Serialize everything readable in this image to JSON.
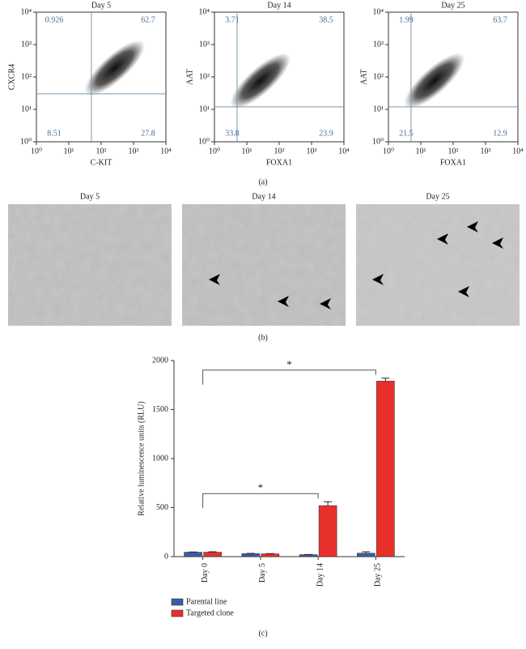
{
  "chart_data": [
    {
      "type": "flow",
      "title": "Day 5",
      "xlabel": "C-KIT",
      "ylabel": "CXCR4",
      "log_scale": true,
      "xlim": [
        1,
        10000
      ],
      "ylim": [
        1,
        10000
      ],
      "xticks": [
        {
          "value": 1,
          "label": "10⁰"
        },
        {
          "value": 10,
          "label": "10¹"
        },
        {
          "value": 100,
          "label": "10²"
        },
        {
          "value": 1000,
          "label": "10³"
        },
        {
          "value": 10000,
          "label": "10⁴"
        }
      ],
      "yticks": [
        {
          "value": 1,
          "label": "10⁰"
        },
        {
          "value": 10,
          "label": "10¹"
        },
        {
          "value": 100,
          "label": "10²"
        },
        {
          "value": 1000,
          "label": "10³"
        },
        {
          "value": 10000,
          "label": "10⁴"
        }
      ],
      "gate": {
        "x": 50,
        "y": 30
      },
      "quadrants": {
        "upper_left": 0.926,
        "upper_right": 62.7,
        "lower_left": 8.51,
        "lower_right": 27.8
      }
    },
    {
      "type": "flow",
      "title": "Day 14",
      "xlabel": "FOXA1",
      "ylabel": "AAT",
      "log_scale": true,
      "xlim": [
        1,
        10000
      ],
      "ylim": [
        1,
        10000
      ],
      "xticks": [
        {
          "value": 1,
          "label": "10⁰"
        },
        {
          "value": 10,
          "label": "10¹"
        },
        {
          "value": 100,
          "label": "10²"
        },
        {
          "value": 1000,
          "label": "10³"
        },
        {
          "value": 10000,
          "label": "10⁴"
        }
      ],
      "yticks": [
        {
          "value": 1,
          "label": "10⁰"
        },
        {
          "value": 10,
          "label": "10¹"
        },
        {
          "value": 100,
          "label": "10²"
        },
        {
          "value": 1000,
          "label": "10³"
        },
        {
          "value": 10000,
          "label": "10⁴"
        }
      ],
      "gate": {
        "x": 5,
        "y": 12
      },
      "quadrants": {
        "upper_left": 3.71,
        "upper_right": 38.5,
        "lower_left": 33.8,
        "lower_right": 23.9
      }
    },
    {
      "type": "flow",
      "title": "Day 25",
      "xlabel": "FOXA1",
      "ylabel": "AAT",
      "log_scale": true,
      "xlim": [
        1,
        10000
      ],
      "ylim": [
        1,
        10000
      ],
      "xticks": [
        {
          "value": 1,
          "label": "10⁰"
        },
        {
          "value": 10,
          "label": "10¹"
        },
        {
          "value": 100,
          "label": "10²"
        },
        {
          "value": 1000,
          "label": "10³"
        },
        {
          "value": 10000,
          "label": "10⁴"
        }
      ],
      "yticks": [
        {
          "value": 1,
          "label": "10⁰"
        },
        {
          "value": 10,
          "label": "10¹"
        },
        {
          "value": 100,
          "label": "10²"
        },
        {
          "value": 1000,
          "label": "10³"
        },
        {
          "value": 10000,
          "label": "10⁴"
        }
      ],
      "gate": {
        "x": 5,
        "y": 12
      },
      "quadrants": {
        "upper_left": 1.99,
        "upper_right": 63.7,
        "lower_left": 21.5,
        "lower_right": 12.9
      }
    },
    {
      "type": "bar",
      "ylabel": "Relative luminescence units (RLU)",
      "categories": [
        "Day 0",
        "Day 5",
        "Day 14",
        "Day 25"
      ],
      "series": [
        {
          "name": "Parental line",
          "color": "#3c5ca8",
          "values": [
            45,
            30,
            20,
            35
          ],
          "errors": [
            3,
            3,
            2,
            15
          ]
        },
        {
          "name": "Targeted clone",
          "color": "#e8302a",
          "values": [
            45,
            28,
            520,
            1790
          ],
          "errors": [
            5,
            3,
            40,
            30
          ]
        }
      ],
      "ylim": [
        0,
        2000
      ],
      "yticks": [
        0,
        500,
        1000,
        1500,
        2000
      ],
      "legend": "bottom",
      "significance": [
        {
          "between": [
            "Day 0",
            "Day 25"
          ],
          "label": "*"
        },
        {
          "between": [
            "Day 0",
            "Day 14"
          ],
          "label": "*"
        }
      ]
    }
  ],
  "panel_labels": [
    "(a)",
    "(b)",
    "(c)"
  ],
  "micrographs": [
    {
      "title": "Day 5"
    },
    {
      "title": "Day 14"
    },
    {
      "title": "Day 25"
    }
  ]
}
